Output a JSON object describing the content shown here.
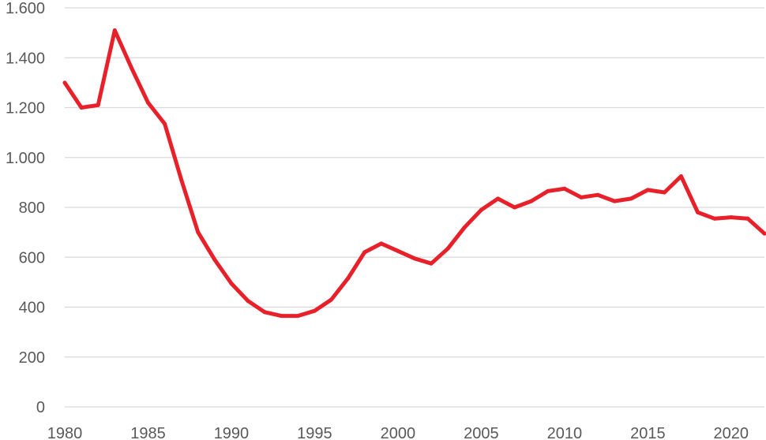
{
  "chart_data": {
    "type": "line",
    "title": "",
    "xlabel": "",
    "ylabel": "",
    "xlim": [
      1980,
      2022
    ],
    "ylim": [
      0,
      1600
    ],
    "x_ticks": [
      {
        "value": 1980,
        "label": "1980"
      },
      {
        "value": 1985,
        "label": "1985"
      },
      {
        "value": 1990,
        "label": "1990"
      },
      {
        "value": 1995,
        "label": "1995"
      },
      {
        "value": 2000,
        "label": "2000"
      },
      {
        "value": 2005,
        "label": "2005"
      },
      {
        "value": 2010,
        "label": "2010"
      },
      {
        "value": 2015,
        "label": "2015"
      },
      {
        "value": 2020,
        "label": "2020"
      }
    ],
    "y_ticks": [
      {
        "value": 0,
        "label": "0"
      },
      {
        "value": 200,
        "label": "200"
      },
      {
        "value": 400,
        "label": "400"
      },
      {
        "value": 600,
        "label": "600"
      },
      {
        "value": 800,
        "label": "800"
      },
      {
        "value": 1000,
        "label": "1.000"
      },
      {
        "value": 1200,
        "label": "1.200"
      },
      {
        "value": 1400,
        "label": "1.400"
      },
      {
        "value": 1600,
        "label": "1.600"
      }
    ],
    "grid": "horizontal",
    "legend": "none",
    "series": [
      {
        "color": "#e8202a",
        "x": [
          1980,
          1981,
          1982,
          1983,
          1984,
          1985,
          1986,
          1987,
          1988,
          1989,
          1990,
          1991,
          1992,
          1993,
          1994,
          1995,
          1996,
          1997,
          1998,
          1999,
          2000,
          2001,
          2002,
          2003,
          2004,
          2005,
          2006,
          2007,
          2008,
          2009,
          2010,
          2011,
          2012,
          2013,
          2014,
          2015,
          2016,
          2017,
          2018,
          2019,
          2020,
          2021,
          2022
        ],
        "values": [
          1300,
          1200,
          1210,
          1510,
          1360,
          1220,
          1135,
          910,
          700,
          590,
          495,
          425,
          380,
          365,
          365,
          385,
          430,
          515,
          620,
          655,
          625,
          595,
          575,
          635,
          720,
          790,
          835,
          800,
          825,
          865,
          875,
          840,
          850,
          825,
          835,
          870,
          860,
          925,
          780,
          755,
          760,
          755,
          695
        ]
      }
    ]
  },
  "colors": {
    "line": "#e8202a",
    "grid": "#d9d9d9",
    "tick_text": "#595959",
    "background": "#ffffff"
  }
}
